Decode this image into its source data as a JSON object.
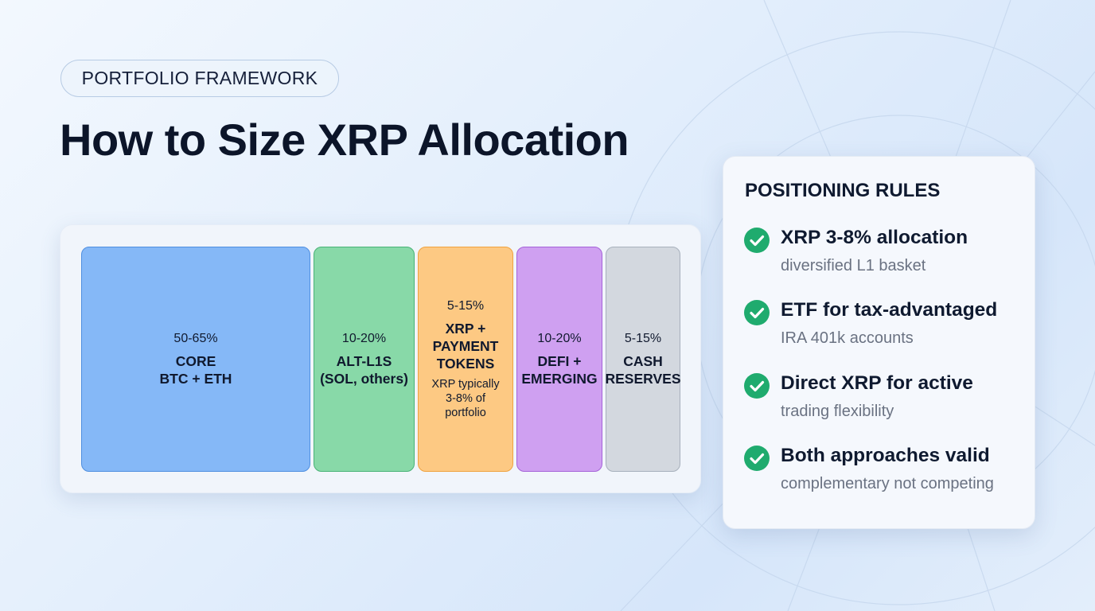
{
  "header": {
    "badge": "PORTFOLIO FRAMEWORK",
    "title": "How to Size XRP Allocation"
  },
  "allocation": {
    "segments": [
      {
        "pct": "50-65%",
        "name": "CORE\nBTC + ETH",
        "note": ""
      },
      {
        "pct": "10-20%",
        "name": "ALT-L1S\n(SOL, others)",
        "note": ""
      },
      {
        "pct": "5-15%",
        "name": "XRP +\nPAYMENT\nTOKENS",
        "note": "XRP typically\n3-8% of\nportfolio"
      },
      {
        "pct": "10-20%",
        "name": "DEFI +\nEMERGING",
        "note": ""
      },
      {
        "pct": "5-15%",
        "name": "CASH\nRESERVES",
        "note": ""
      }
    ]
  },
  "rules": {
    "title": "POSITIONING RULES",
    "items": [
      {
        "title": "XRP 3-8% allocation",
        "subtitle": "diversified L1 basket"
      },
      {
        "title": "ETF for tax-advantaged",
        "subtitle": "IRA 401k accounts"
      },
      {
        "title": "Direct XRP for active",
        "subtitle": "trading flexibility"
      },
      {
        "title": "Both approaches valid",
        "subtitle": "complementary not competing"
      }
    ]
  },
  "colors": {
    "core": "#85b8f7",
    "alt_l1": "#88d9a8",
    "xrp_payment": "#fdc983",
    "defi": "#cfa0f1",
    "cash": "#d3d8df",
    "check": "#1fab6e"
  }
}
